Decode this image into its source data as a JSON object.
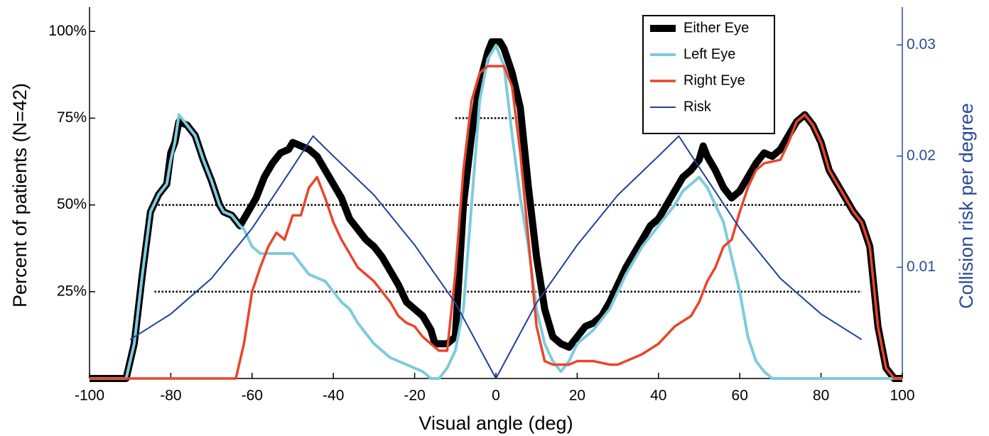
{
  "chart_data": {
    "type": "line",
    "xlabel": "Visual angle (deg)",
    "ylabel": "Percent of patients (N=42)",
    "y2label": "Collision risk per degree",
    "xlim": [
      -100,
      100
    ],
    "xticks": [
      -100,
      -80,
      -60,
      -40,
      -20,
      0,
      20,
      40,
      60,
      80,
      100
    ],
    "ylim": [
      0,
      107
    ],
    "yticks": [
      {
        "value": 25,
        "label": "25%"
      },
      {
        "value": 50,
        "label": "50%"
      },
      {
        "value": 75,
        "label": "75%"
      },
      {
        "value": 100,
        "label": "100%"
      }
    ],
    "y2lim": [
      0,
      0.0334
    ],
    "y2ticks": [
      0.01,
      0.02,
      0.03
    ],
    "reference_lines": [
      {
        "y": 25,
        "x": [
          -84,
          90
        ]
      },
      {
        "y": 50,
        "x": [
          -84,
          86
        ]
      },
      {
        "y": 75,
        "x": [
          -10,
          6
        ]
      }
    ],
    "legend": "upper right",
    "series": [
      {
        "name": "Either Eye",
        "color": "#000000",
        "x": [
          -100,
          -91,
          -89,
          -87,
          -85,
          -83,
          -81,
          -80,
          -79,
          -78,
          -76,
          -74,
          -72,
          -70,
          -68,
          -67,
          -65,
          -63,
          -61,
          -59,
          -57,
          -55,
          -53,
          -51,
          -50,
          -48,
          -46,
          -44,
          -42,
          -40,
          -38,
          -36,
          -34,
          -32,
          -30,
          -28,
          -26,
          -24,
          -22,
          -20,
          -18,
          -16,
          -15,
          -12,
          -10,
          -8,
          -6,
          -4,
          -2,
          -1,
          1,
          2,
          4,
          6,
          8,
          10,
          12,
          14,
          16,
          18,
          20,
          22,
          24,
          26,
          28,
          30,
          32,
          34,
          36,
          38,
          40,
          42,
          44,
          46,
          48,
          50,
          51,
          52,
          54,
          56,
          58,
          60,
          62,
          64,
          66,
          68,
          70,
          72,
          74,
          76,
          78,
          80,
          82,
          84,
          86,
          88,
          90,
          92,
          94,
          96,
          98,
          100
        ],
        "values": [
          0,
          0,
          10,
          30,
          48,
          53,
          56,
          65,
          68,
          74,
          73,
          70,
          63,
          57,
          50,
          48,
          47,
          44,
          48,
          52,
          58,
          62,
          65,
          66,
          68,
          67,
          66,
          64,
          60,
          56,
          52,
          46,
          43,
          40,
          38,
          35,
          31,
          27,
          22,
          20,
          18,
          14,
          10,
          10,
          12,
          50,
          70,
          85,
          94,
          97,
          97,
          95,
          88,
          78,
          55,
          35,
          20,
          12,
          10,
          9,
          12,
          15,
          16,
          18,
          22,
          27,
          32,
          36,
          40,
          44,
          46,
          50,
          54,
          58,
          60,
          63,
          67,
          64,
          60,
          55,
          52,
          54,
          58,
          62,
          65,
          64,
          66,
          70,
          74,
          76,
          73,
          68,
          60,
          56,
          52,
          48,
          45,
          38,
          15,
          3,
          0,
          0
        ]
      },
      {
        "name": "Left Eye",
        "color": "#7ecbdd",
        "x": [
          -100,
          -91,
          -89,
          -87,
          -85,
          -83,
          -81,
          -80,
          -79,
          -78,
          -76,
          -74,
          -72,
          -70,
          -68,
          -67,
          -65,
          -63,
          -62,
          -60,
          -58,
          -56,
          -50,
          -48,
          -46,
          -42,
          -40,
          -38,
          -36,
          -34,
          -32,
          -30,
          -28,
          -26,
          -24,
          -22,
          -20,
          -18,
          -16,
          -14,
          -12,
          -10,
          -8,
          -6,
          -4,
          -2,
          0,
          2,
          4,
          6,
          8,
          10,
          12,
          14,
          16,
          18,
          20,
          24,
          28,
          32,
          36,
          40,
          44,
          46,
          48,
          50,
          52,
          54,
          56,
          58,
          60,
          62,
          64,
          66,
          68,
          100
        ],
        "values": [
          0,
          0,
          10,
          30,
          48,
          53,
          56,
          63,
          68,
          76,
          73,
          70,
          63,
          57,
          50,
          48,
          47,
          44,
          43,
          38,
          36,
          36,
          36,
          33,
          30,
          28,
          25,
          22,
          20,
          16,
          13,
          10,
          8,
          6,
          5,
          4,
          3,
          2,
          0,
          0,
          3,
          8,
          20,
          50,
          80,
          92,
          96,
          90,
          70,
          52,
          38,
          20,
          10,
          5,
          2,
          5,
          10,
          14,
          20,
          30,
          38,
          44,
          50,
          54,
          56,
          58,
          55,
          50,
          45,
          35,
          25,
          12,
          5,
          2,
          0,
          0
        ]
      },
      {
        "name": "Right Eye",
        "color": "#e9452b",
        "x": [
          -100,
          -64,
          -62,
          -60,
          -58,
          -56,
          -54,
          -52,
          -50,
          -48,
          -46,
          -44,
          -42,
          -40,
          -38,
          -36,
          -34,
          -32,
          -30,
          -28,
          -26,
          -24,
          -22,
          -20,
          -18,
          -16,
          -14,
          -12,
          -10,
          -8,
          -6,
          -4,
          -2,
          0,
          2,
          4,
          6,
          8,
          10,
          12,
          14,
          18,
          20,
          24,
          28,
          30,
          32,
          36,
          40,
          44,
          48,
          50,
          52,
          54,
          56,
          58,
          60,
          62,
          64,
          66,
          70,
          72,
          74,
          76,
          78,
          80,
          82,
          84,
          86,
          88,
          90,
          92,
          94,
          96,
          98,
          100
        ],
        "values": [
          0,
          0,
          10,
          25,
          32,
          38,
          42,
          40,
          47,
          47,
          55,
          58,
          52,
          45,
          40,
          36,
          32,
          30,
          28,
          25,
          22,
          18,
          16,
          15,
          12,
          10,
          8,
          8,
          30,
          60,
          80,
          88,
          90,
          90,
          90,
          84,
          65,
          40,
          15,
          5,
          4,
          4,
          5,
          5,
          4,
          4,
          5,
          7,
          10,
          15,
          18,
          22,
          28,
          32,
          38,
          40,
          48,
          55,
          60,
          62,
          63,
          68,
          74,
          76,
          73,
          68,
          60,
          56,
          52,
          48,
          45,
          38,
          15,
          3,
          0,
          0
        ]
      },
      {
        "name": "Risk",
        "color": "#1f3f9c",
        "axis": "y2",
        "x": [
          -90,
          -80,
          -70,
          -60,
          -50,
          -45,
          -40,
          -30,
          -20,
          -10,
          0,
          10,
          20,
          30,
          40,
          45,
          50,
          60,
          70,
          80,
          90
        ],
        "values": [
          0.0035,
          0.0058,
          0.009,
          0.0135,
          0.019,
          0.0218,
          0.02,
          0.0165,
          0.012,
          0.0068,
          0,
          0.0068,
          0.012,
          0.0165,
          0.02,
          0.0218,
          0.019,
          0.0135,
          0.009,
          0.0058,
          0.0035
        ]
      }
    ]
  }
}
